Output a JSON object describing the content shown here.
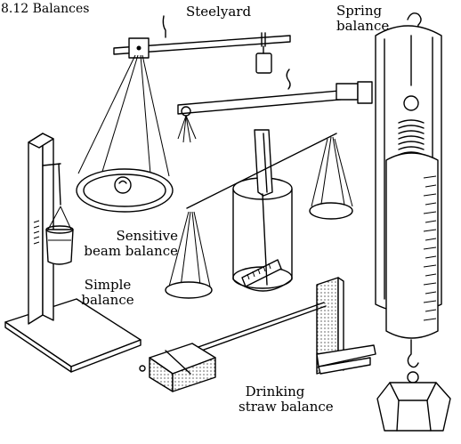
{
  "figure": {
    "title": "8.12 Balances",
    "labels": {
      "steelyard": "Steelyard",
      "spring_line1": "Spring",
      "spring_line2": "balance",
      "sensitive_line1": "Sensitive",
      "sensitive_line2": "beam balance",
      "simple_line1": "Simple",
      "simple_line2": "balance",
      "straw_line1": "Drinking",
      "straw_line2": "straw balance"
    }
  }
}
